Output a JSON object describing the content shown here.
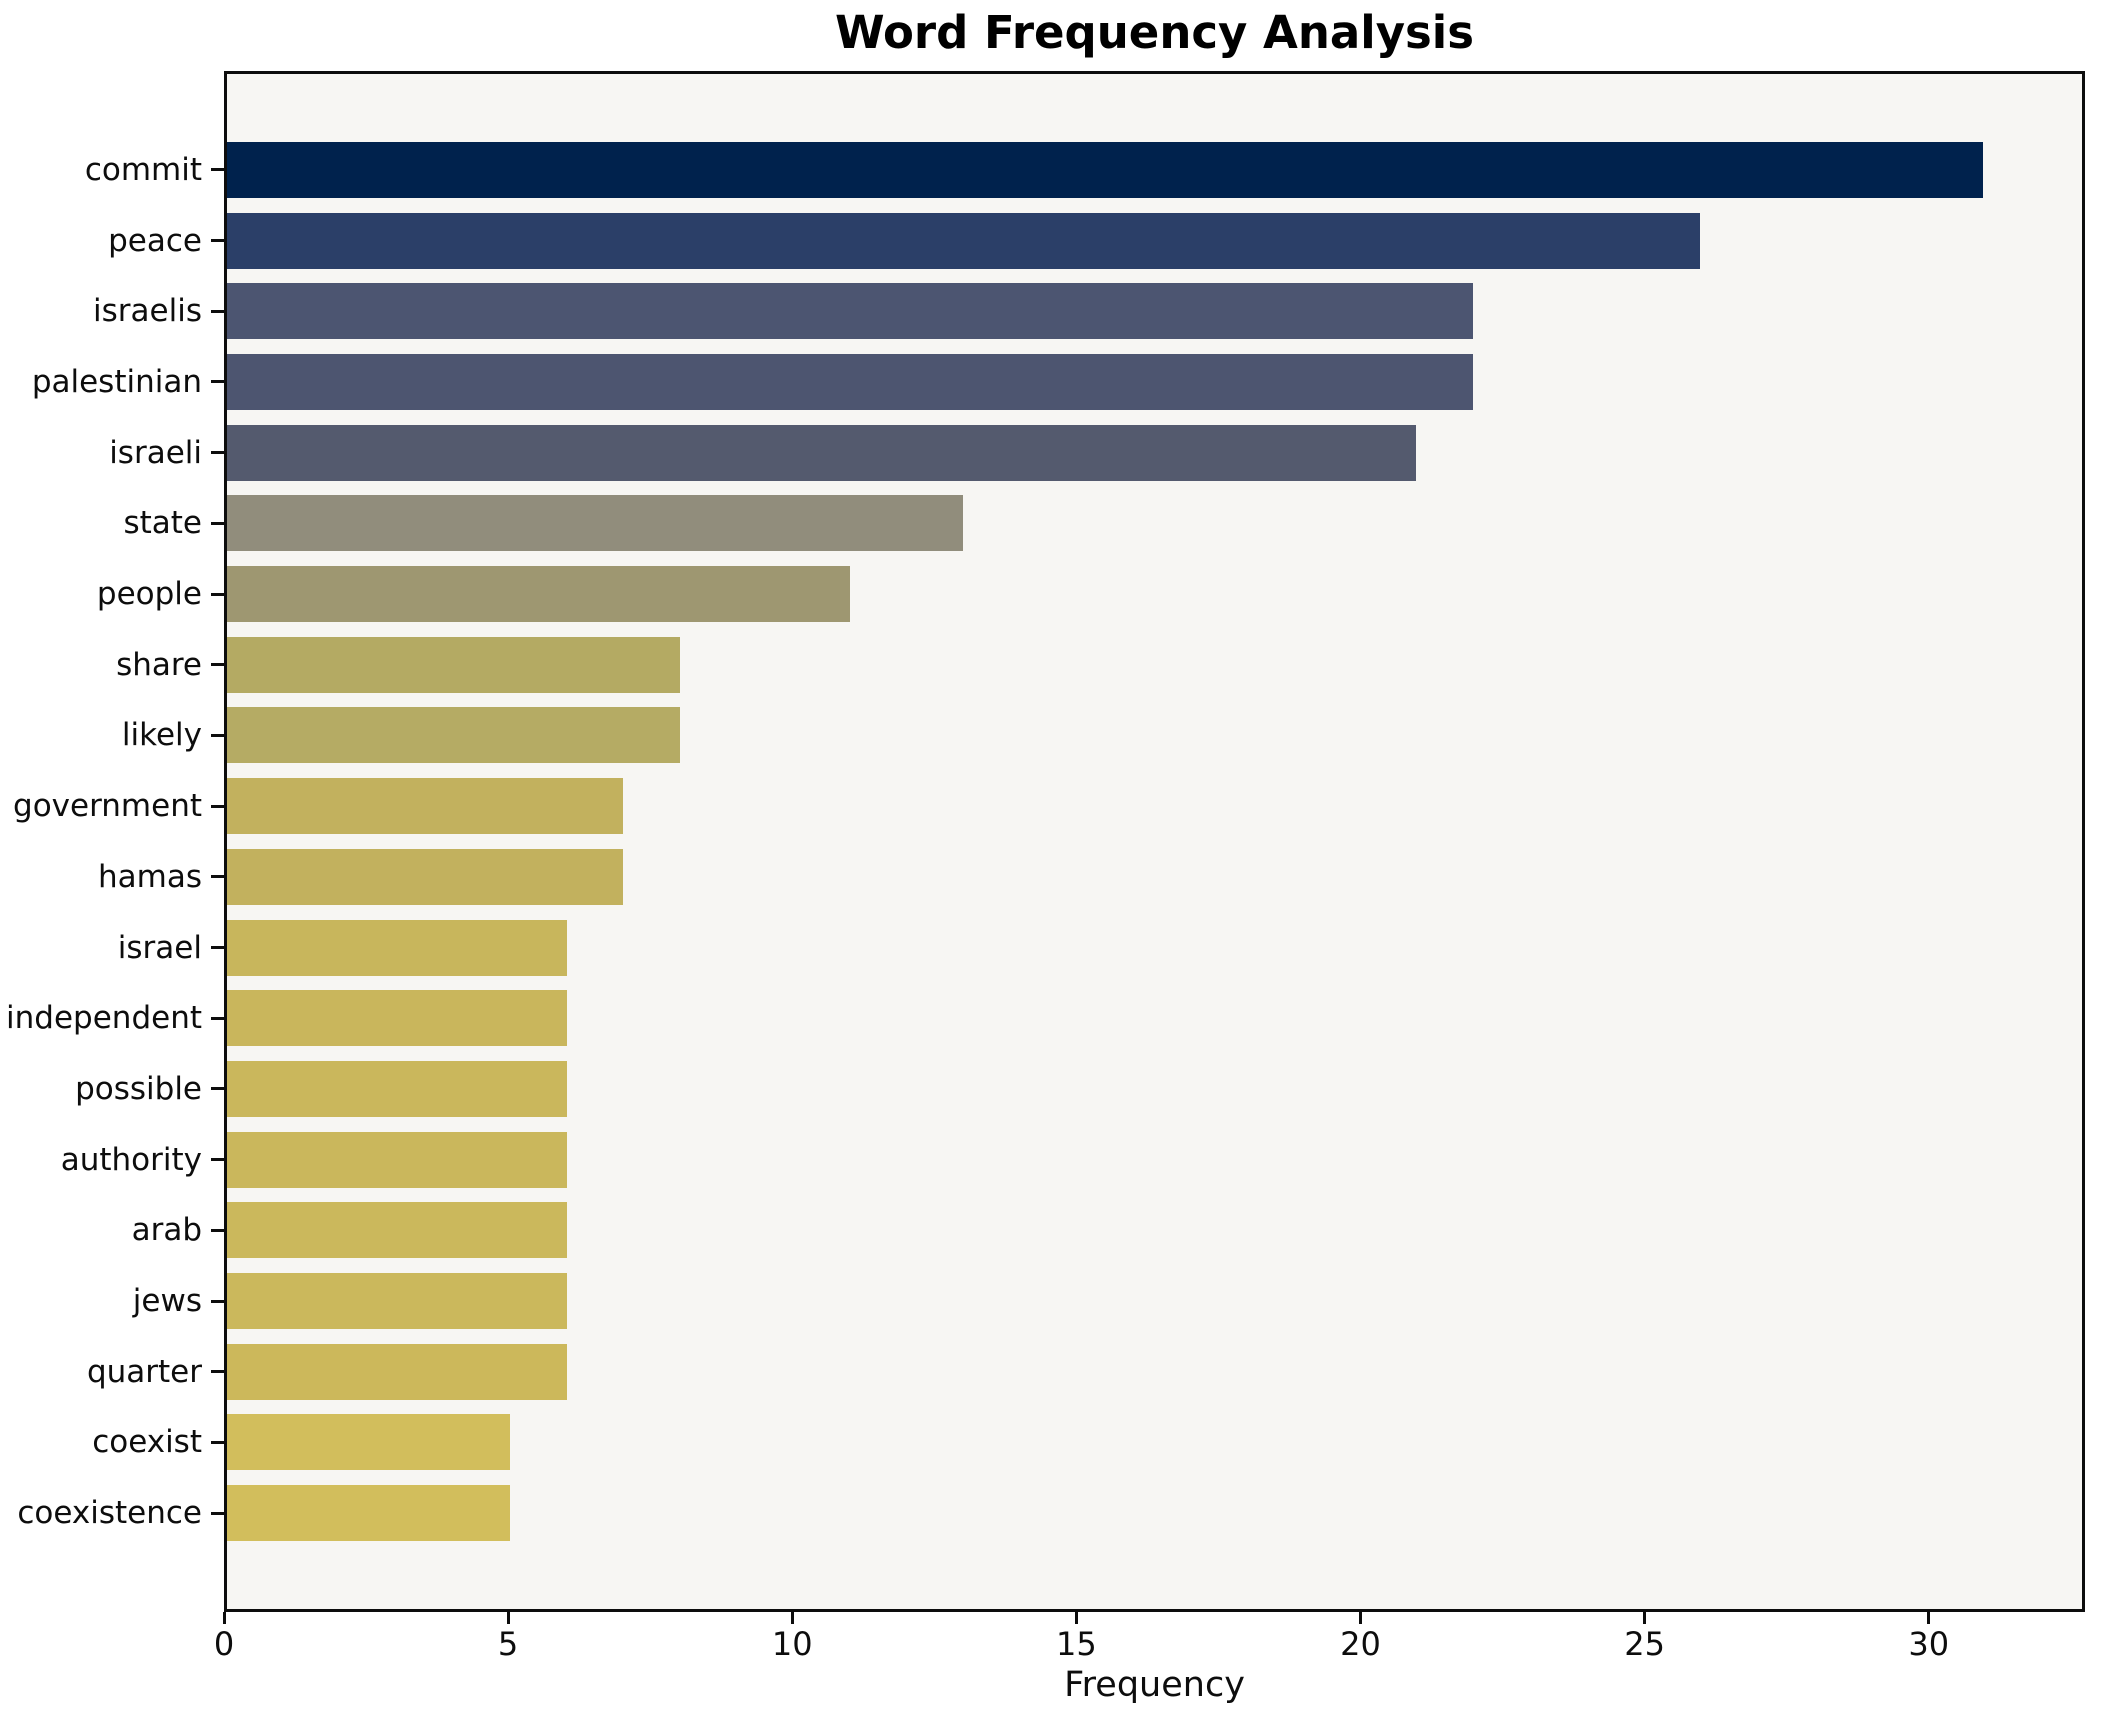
{
  "figure": {
    "title": "Word Frequency Analysis",
    "background_color": "#ffffff",
    "plot_background_color": "#f7f6f3",
    "spine_color": "#0d0d0d",
    "text_color": "#0d0d0d"
  },
  "chart_data": {
    "type": "bar",
    "orientation": "horizontal",
    "title": "Word Frequency Analysis",
    "xlabel": "Frequency",
    "ylabel": "",
    "grid": false,
    "legend": null,
    "xlim": [
      0,
      32.75
    ],
    "xticks": [
      0,
      5,
      10,
      15,
      20,
      25,
      30
    ],
    "xtick_labels": [
      "0",
      "5",
      "10",
      "15",
      "20",
      "25",
      "30"
    ],
    "categories": [
      "commit",
      "peace",
      "israelis",
      "palestinian",
      "israeli",
      "state",
      "people",
      "share",
      "likely",
      "government",
      "hamas",
      "israel",
      "independent",
      "possible",
      "authority",
      "arab",
      "jews",
      "quarter",
      "coexist",
      "coexistence"
    ],
    "values": [
      31,
      26,
      22,
      22,
      21,
      13,
      11,
      8,
      8,
      7,
      7,
      6,
      6,
      6,
      6,
      6,
      6,
      6,
      5,
      5
    ],
    "bar_colors": [
      "#00224d",
      "#2b3f68",
      "#4c5571",
      "#4d5570",
      "#545a6e",
      "#918d7c",
      "#9e9771",
      "#b4aa63",
      "#b5ab64",
      "#c2b15e",
      "#c2b15e",
      "#c8b65c",
      "#c9b65c",
      "#cab75c",
      "#cab75c",
      "#cbb85c",
      "#cbb85c",
      "#ccb85b",
      "#d2be5c",
      "#d2be5c"
    ]
  }
}
